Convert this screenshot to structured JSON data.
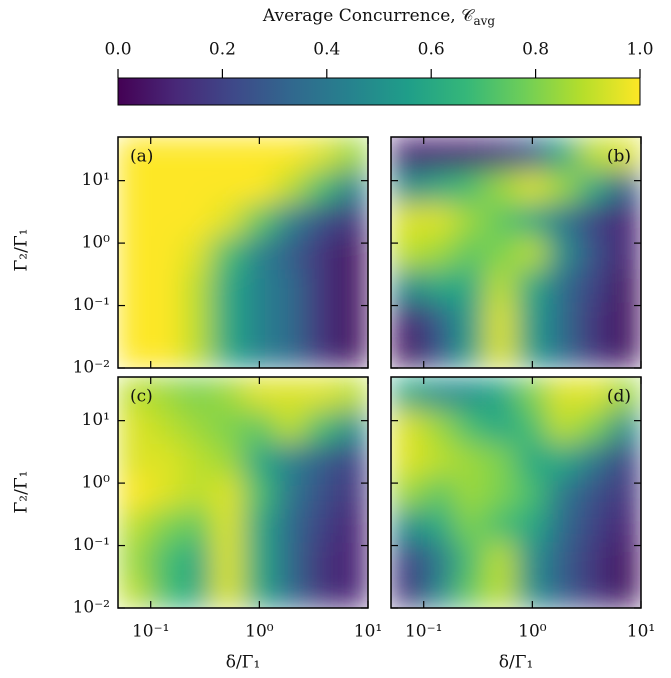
{
  "chart_data": {
    "type": "heatmap",
    "colorbar_label": "Average Concurrence, 𝒞",
    "colorbar_label_sub": "avg",
    "zlim": [
      0,
      1
    ],
    "zticks": [
      {
        "value": 0,
        "label": "0.0"
      },
      0.2,
      0.4,
      0.6,
      0.8,
      {
        "value": 1,
        "label": "1.0"
      }
    ],
    "colormap": [
      "#440154",
      "#482878",
      "#3e4989",
      "#31688e",
      "#26828e",
      "#1f9e89",
      "#35b779",
      "#6ece58",
      "#b5de2b",
      "#fde725"
    ],
    "xlabel": "δ/Γ₁",
    "ylabel": "Γ₂/Γ₁",
    "log_x": true,
    "log_y": true,
    "xlim": [
      0.05,
      10
    ],
    "ylim": [
      0.01,
      50
    ],
    "xticks": [
      {
        "value": 0.1,
        "label": "10⁻¹"
      },
      {
        "value": 1,
        "label": "10⁰"
      },
      {
        "value": 10,
        "label": "10¹"
      }
    ],
    "yticks": [
      {
        "value": 0.01,
        "label": "10⁻²"
      },
      {
        "value": 0.1,
        "label": "10⁻¹"
      },
      {
        "value": 1,
        "label": "10⁰"
      },
      {
        "value": 10,
        "label": "10¹"
      }
    ],
    "x": [
      0.07,
      0.14,
      0.26,
      0.51,
      0.99,
      1.9,
      3.7,
      7.2
    ],
    "y": [
      0.018,
      0.062,
      0.21,
      0.71,
      2.4,
      8.1,
      27
    ],
    "panels": [
      {
        "label": "(a)",
        "z": [
          [
            1,
            1,
            0.9,
            0.6,
            0.45,
            0.35,
            0.15,
            0.05
          ],
          [
            1,
            1,
            0.9,
            0.6,
            0.45,
            0.35,
            0.15,
            0.05
          ],
          [
            1,
            1,
            0.9,
            0.6,
            0.45,
            0.35,
            0.15,
            0.05
          ],
          [
            1,
            1,
            0.95,
            0.7,
            0.45,
            0.3,
            0.15,
            0.05
          ],
          [
            1,
            1,
            1,
            0.95,
            0.75,
            0.45,
            0.25,
            0.15
          ],
          [
            1,
            1,
            1,
            1,
            1,
            0.9,
            0.7,
            0.45
          ],
          [
            1,
            1,
            1,
            1,
            1,
            1,
            0.95,
            0.85
          ]
        ]
      },
      {
        "label": "(b)",
        "z": [
          [
            0.05,
            0.25,
            0.55,
            0.95,
            0.55,
            0.35,
            0.15,
            0.05
          ],
          [
            0.1,
            0.3,
            0.55,
            0.95,
            0.55,
            0.35,
            0.15,
            0.05
          ],
          [
            0.5,
            0.6,
            0.6,
            0.9,
            0.6,
            0.35,
            0.2,
            0.05
          ],
          [
            0.9,
            0.85,
            0.75,
            0.8,
            0.9,
            0.5,
            0.25,
            0.1
          ],
          [
            0.95,
            0.95,
            0.85,
            0.75,
            0.6,
            0.4,
            0.2,
            0.1
          ],
          [
            0.5,
            0.6,
            0.7,
            0.85,
            0.95,
            0.85,
            0.6,
            0.3
          ],
          [
            0.1,
            0.1,
            0.1,
            0.15,
            0.3,
            0.6,
            0.9,
            0.95
          ]
        ]
      },
      {
        "label": "(c)",
        "z": [
          [
            0.9,
            0.7,
            0.6,
            0.95,
            0.6,
            0.35,
            0.15,
            0.1
          ],
          [
            0.85,
            0.7,
            0.6,
            0.95,
            0.6,
            0.35,
            0.15,
            0.1
          ],
          [
            0.9,
            0.8,
            0.75,
            0.95,
            0.6,
            0.35,
            0.2,
            0.1
          ],
          [
            1,
            0.95,
            0.9,
            0.95,
            0.7,
            0.4,
            0.25,
            0.15
          ],
          [
            0.95,
            0.95,
            0.9,
            0.85,
            0.6,
            0.45,
            0.3,
            0.2
          ],
          [
            0.95,
            0.9,
            0.85,
            0.8,
            0.75,
            0.9,
            0.7,
            0.5
          ],
          [
            0.9,
            0.85,
            0.8,
            0.85,
            0.95,
            0.95,
            0.95,
            0.9
          ]
        ]
      },
      {
        "label": "(d)",
        "z": [
          [
            0.15,
            0.45,
            0.75,
            0.9,
            0.5,
            0.3,
            0.15,
            0.05
          ],
          [
            0.2,
            0.4,
            0.7,
            0.9,
            0.5,
            0.3,
            0.15,
            0.05
          ],
          [
            0.5,
            0.6,
            0.8,
            0.7,
            0.6,
            0.35,
            0.2,
            0.1
          ],
          [
            0.85,
            0.75,
            0.85,
            0.8,
            0.7,
            0.4,
            0.25,
            0.15
          ],
          [
            0.95,
            0.9,
            0.85,
            0.8,
            0.6,
            0.6,
            0.4,
            0.2
          ],
          [
            0.95,
            0.85,
            0.7,
            0.6,
            0.7,
            0.9,
            0.8,
            0.5
          ],
          [
            0.6,
            0.5,
            0.5,
            0.6,
            0.8,
            0.95,
            0.95,
            0.85
          ]
        ]
      }
    ]
  }
}
